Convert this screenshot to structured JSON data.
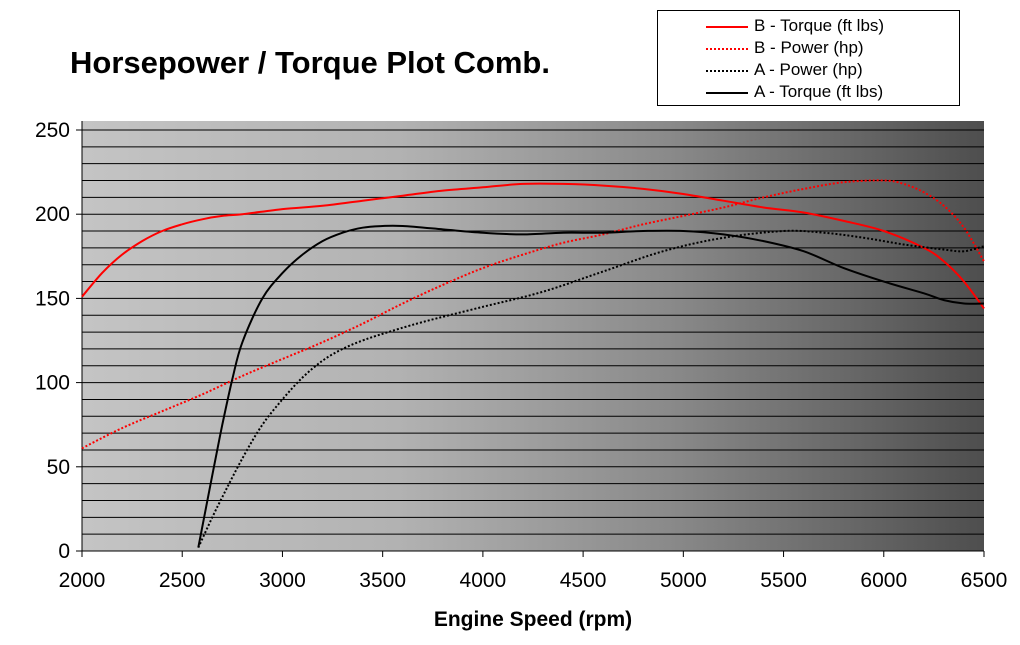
{
  "chart_data": {
    "type": "line",
    "title": "Horsepower / Torque Plot Comb.",
    "xlabel": "Engine Speed (rpm)",
    "ylabel": "",
    "xlim": [
      2000,
      6500
    ],
    "ylim": [
      0,
      250
    ],
    "x_ticks": [
      2000,
      2500,
      3000,
      3500,
      4000,
      4500,
      5000,
      5500,
      6000,
      6500
    ],
    "y_ticks": [
      0,
      50,
      100,
      150,
      200,
      250
    ],
    "minor_grid_step": 10,
    "grid": true,
    "legend_position": "top-right",
    "series": [
      {
        "name": "B - Torque (ft lbs)",
        "color": "#ff0000",
        "dash": "solid",
        "points": [
          [
            2000,
            151
          ],
          [
            2100,
            165
          ],
          [
            2200,
            176
          ],
          [
            2300,
            184
          ],
          [
            2400,
            190
          ],
          [
            2500,
            194
          ],
          [
            2600,
            197
          ],
          [
            2700,
            199
          ],
          [
            2800,
            200
          ],
          [
            3000,
            203
          ],
          [
            3200,
            205
          ],
          [
            3400,
            208
          ],
          [
            3600,
            211
          ],
          [
            3800,
            214
          ],
          [
            4000,
            216
          ],
          [
            4200,
            218
          ],
          [
            4400,
            218
          ],
          [
            4600,
            217
          ],
          [
            4800,
            215
          ],
          [
            5000,
            212
          ],
          [
            5200,
            208
          ],
          [
            5400,
            204
          ],
          [
            5600,
            201
          ],
          [
            5800,
            196
          ],
          [
            6000,
            190
          ],
          [
            6200,
            180
          ],
          [
            6300,
            172
          ],
          [
            6400,
            160
          ],
          [
            6500,
            144
          ]
        ]
      },
      {
        "name": "B - Power (hp)",
        "color": "#ff0000",
        "dash": "dotted",
        "points": [
          [
            2000,
            61
          ],
          [
            2200,
            73
          ],
          [
            2400,
            83
          ],
          [
            2600,
            93
          ],
          [
            2800,
            104
          ],
          [
            3000,
            114
          ],
          [
            3200,
            124
          ],
          [
            3400,
            135
          ],
          [
            3600,
            147
          ],
          [
            3800,
            158
          ],
          [
            4000,
            168
          ],
          [
            4200,
            176
          ],
          [
            4400,
            183
          ],
          [
            4600,
            188
          ],
          [
            4800,
            194
          ],
          [
            5000,
            199
          ],
          [
            5200,
            204
          ],
          [
            5400,
            210
          ],
          [
            5600,
            215
          ],
          [
            5800,
            219
          ],
          [
            6000,
            220
          ],
          [
            6100,
            218
          ],
          [
            6200,
            213
          ],
          [
            6300,
            205
          ],
          [
            6400,
            192
          ],
          [
            6500,
            172
          ]
        ]
      },
      {
        "name": "A - Power (hp)",
        "color": "#000000",
        "dash": "dotted",
        "points": [
          [
            2580,
            2
          ],
          [
            2650,
            20
          ],
          [
            2700,
            32
          ],
          [
            2800,
            55
          ],
          [
            2900,
            75
          ],
          [
            3000,
            90
          ],
          [
            3100,
            103
          ],
          [
            3200,
            113
          ],
          [
            3300,
            120
          ],
          [
            3400,
            125
          ],
          [
            3500,
            129
          ],
          [
            3700,
            136
          ],
          [
            4000,
            145
          ],
          [
            4300,
            154
          ],
          [
            4600,
            166
          ],
          [
            4900,
            178
          ],
          [
            5200,
            186
          ],
          [
            5500,
            190
          ],
          [
            5700,
            189
          ],
          [
            5900,
            186
          ],
          [
            6100,
            182
          ],
          [
            6300,
            179
          ],
          [
            6400,
            178
          ],
          [
            6500,
            181
          ]
        ]
      },
      {
        "name": "A - Torque (ft lbs)",
        "color": "#000000",
        "dash": "solid",
        "points": [
          [
            2580,
            2
          ],
          [
            2650,
            45
          ],
          [
            2700,
            75
          ],
          [
            2750,
            102
          ],
          [
            2800,
            124
          ],
          [
            2900,
            150
          ],
          [
            3000,
            165
          ],
          [
            3100,
            176
          ],
          [
            3200,
            184
          ],
          [
            3300,
            189
          ],
          [
            3400,
            192
          ],
          [
            3500,
            193
          ],
          [
            3600,
            193
          ],
          [
            3800,
            191
          ],
          [
            4000,
            189
          ],
          [
            4200,
            188
          ],
          [
            4400,
            189
          ],
          [
            4600,
            189
          ],
          [
            4800,
            190
          ],
          [
            5000,
            190
          ],
          [
            5200,
            188
          ],
          [
            5400,
            184
          ],
          [
            5600,
            178
          ],
          [
            5800,
            168
          ],
          [
            6000,
            160
          ],
          [
            6200,
            153
          ],
          [
            6300,
            149
          ],
          [
            6400,
            147
          ],
          [
            6500,
            147
          ]
        ]
      }
    ]
  }
}
